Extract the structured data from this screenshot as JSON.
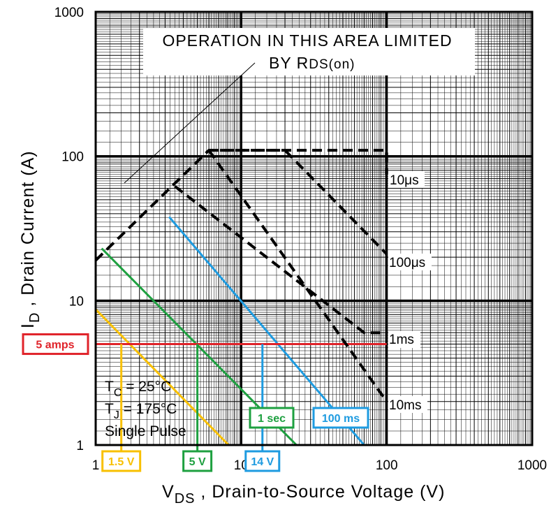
{
  "chart_data": {
    "type": "line",
    "title": "",
    "xlabel": {
      "main": "V",
      "sub": "DS",
      "rest": " , Drain-to-Source Voltage (V)"
    },
    "ylabel": {
      "main": "I",
      "sub": "D",
      "rest": " , Drain Current (A)"
    },
    "x_scale": "log",
    "y_scale": "log",
    "xlim": [
      1,
      1000
    ],
    "ylim": [
      1,
      1000
    ],
    "x_ticks": [
      "1",
      "10",
      "100",
      "1000"
    ],
    "y_ticks": [
      "1",
      "10",
      "100",
      "1000"
    ],
    "grid": true,
    "region_note": {
      "line1": "OPERATION IN THIS AREA LIMITED",
      "line2": "BY R",
      "line2_sub": "DS(on)"
    },
    "soa_series": [
      {
        "name": "10μs",
        "color": "#000000",
        "x": [
          1,
          6,
          100,
          100
        ],
        "y": [
          19,
          110,
          110,
          75
        ]
      },
      {
        "name": "100μs",
        "x": [
          6,
          20,
          100
        ],
        "y": [
          110,
          110,
          21
        ]
      },
      {
        "name": "1ms",
        "x": [
          3.5,
          70,
          100
        ],
        "y": [
          62,
          6,
          6
        ]
      },
      {
        "name": "10ms",
        "x": [
          6,
          100
        ],
        "y": [
          110,
          2
        ]
      }
    ],
    "example_series": [
      {
        "name": "1.5 V",
        "color": "#F8C000",
        "x": [
          1,
          8.2
        ],
        "y": [
          8.7,
          1
        ]
      },
      {
        "name": "1 sec",
        "color": "#1EA040",
        "x": [
          1.1,
          24
        ],
        "y": [
          23,
          1
        ]
      },
      {
        "name": "100 ms",
        "color": "#1E9BE0",
        "x": [
          3.2,
          70
        ],
        "y": [
          38,
          1
        ]
      }
    ],
    "reference_line": {
      "name": "5 amps",
      "y": 5,
      "x": [
        1,
        100
      ],
      "color": "#E0232A"
    },
    "callouts": [
      {
        "label": "1.5 V",
        "x": 1.5,
        "y": 5,
        "color": "#F8C000"
      },
      {
        "label": "5 V",
        "x": 5,
        "y": 5,
        "color": "#1EA040"
      },
      {
        "label": "14 V",
        "x": 14,
        "y": 5,
        "color": "#1E9BE0"
      }
    ],
    "conditions": {
      "tc": {
        "main": "T",
        "sub": "C",
        "rest": "  = 25°C"
      },
      "tj": {
        "main": "T",
        "sub": "J",
        "rest": "  = 175°C"
      },
      "pulse": "Single Pulse"
    }
  }
}
